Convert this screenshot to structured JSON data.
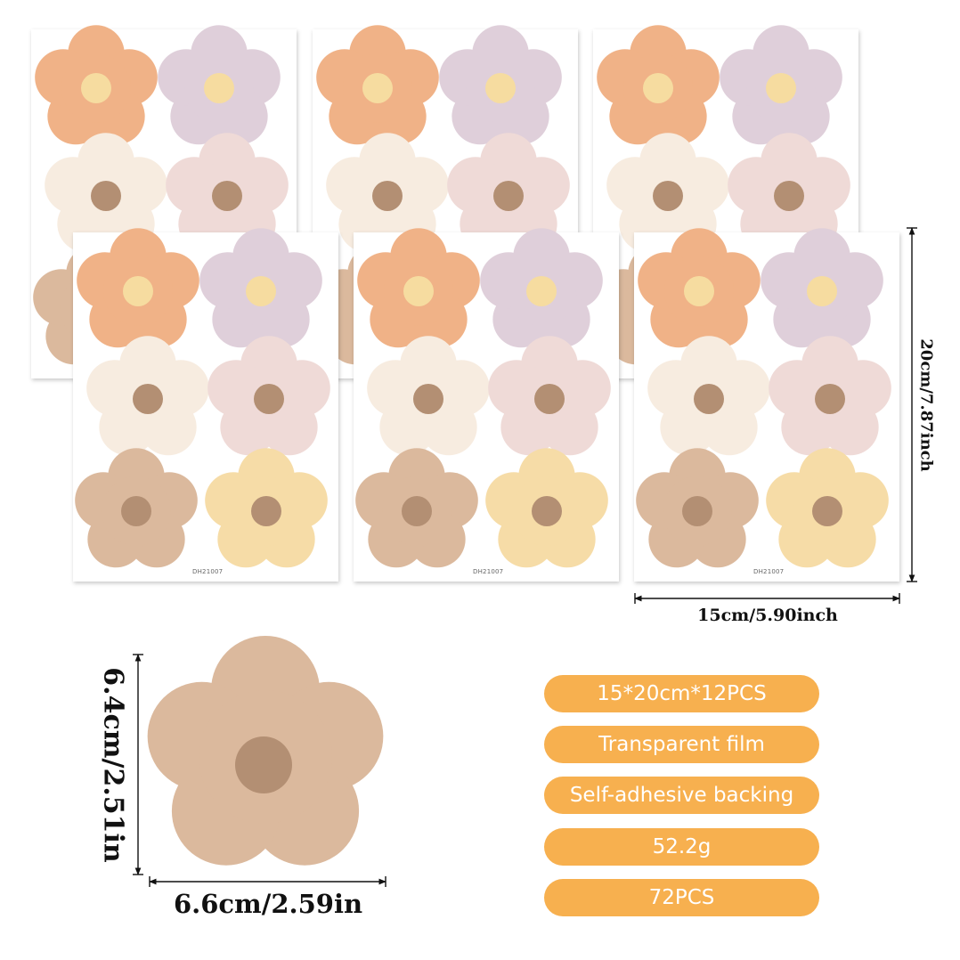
{
  "sheet": {
    "code": "DH21007",
    "width_label": "15cm/5.90inch",
    "height_label": "20cm/7.87inch"
  },
  "sticker": {
    "width_label": "6.6cm/2.59in",
    "height_label": "6.4cm/2.51in"
  },
  "specs": [
    "15*20cm*12PCS",
    "Transparent film",
    "Self-adhesive backing",
    "52.2g",
    "72PCS"
  ],
  "flower_colors": {
    "orange": "#f0b287",
    "lilac": "#dfcfda",
    "cream": "#f7ece0",
    "blush": "#efdad7",
    "tan": "#dbb99d",
    "butter": "#f6dca7",
    "center_yellow": "#f6dca0",
    "center_brown": "#b38f73"
  },
  "accent_color": "#f7b04f"
}
